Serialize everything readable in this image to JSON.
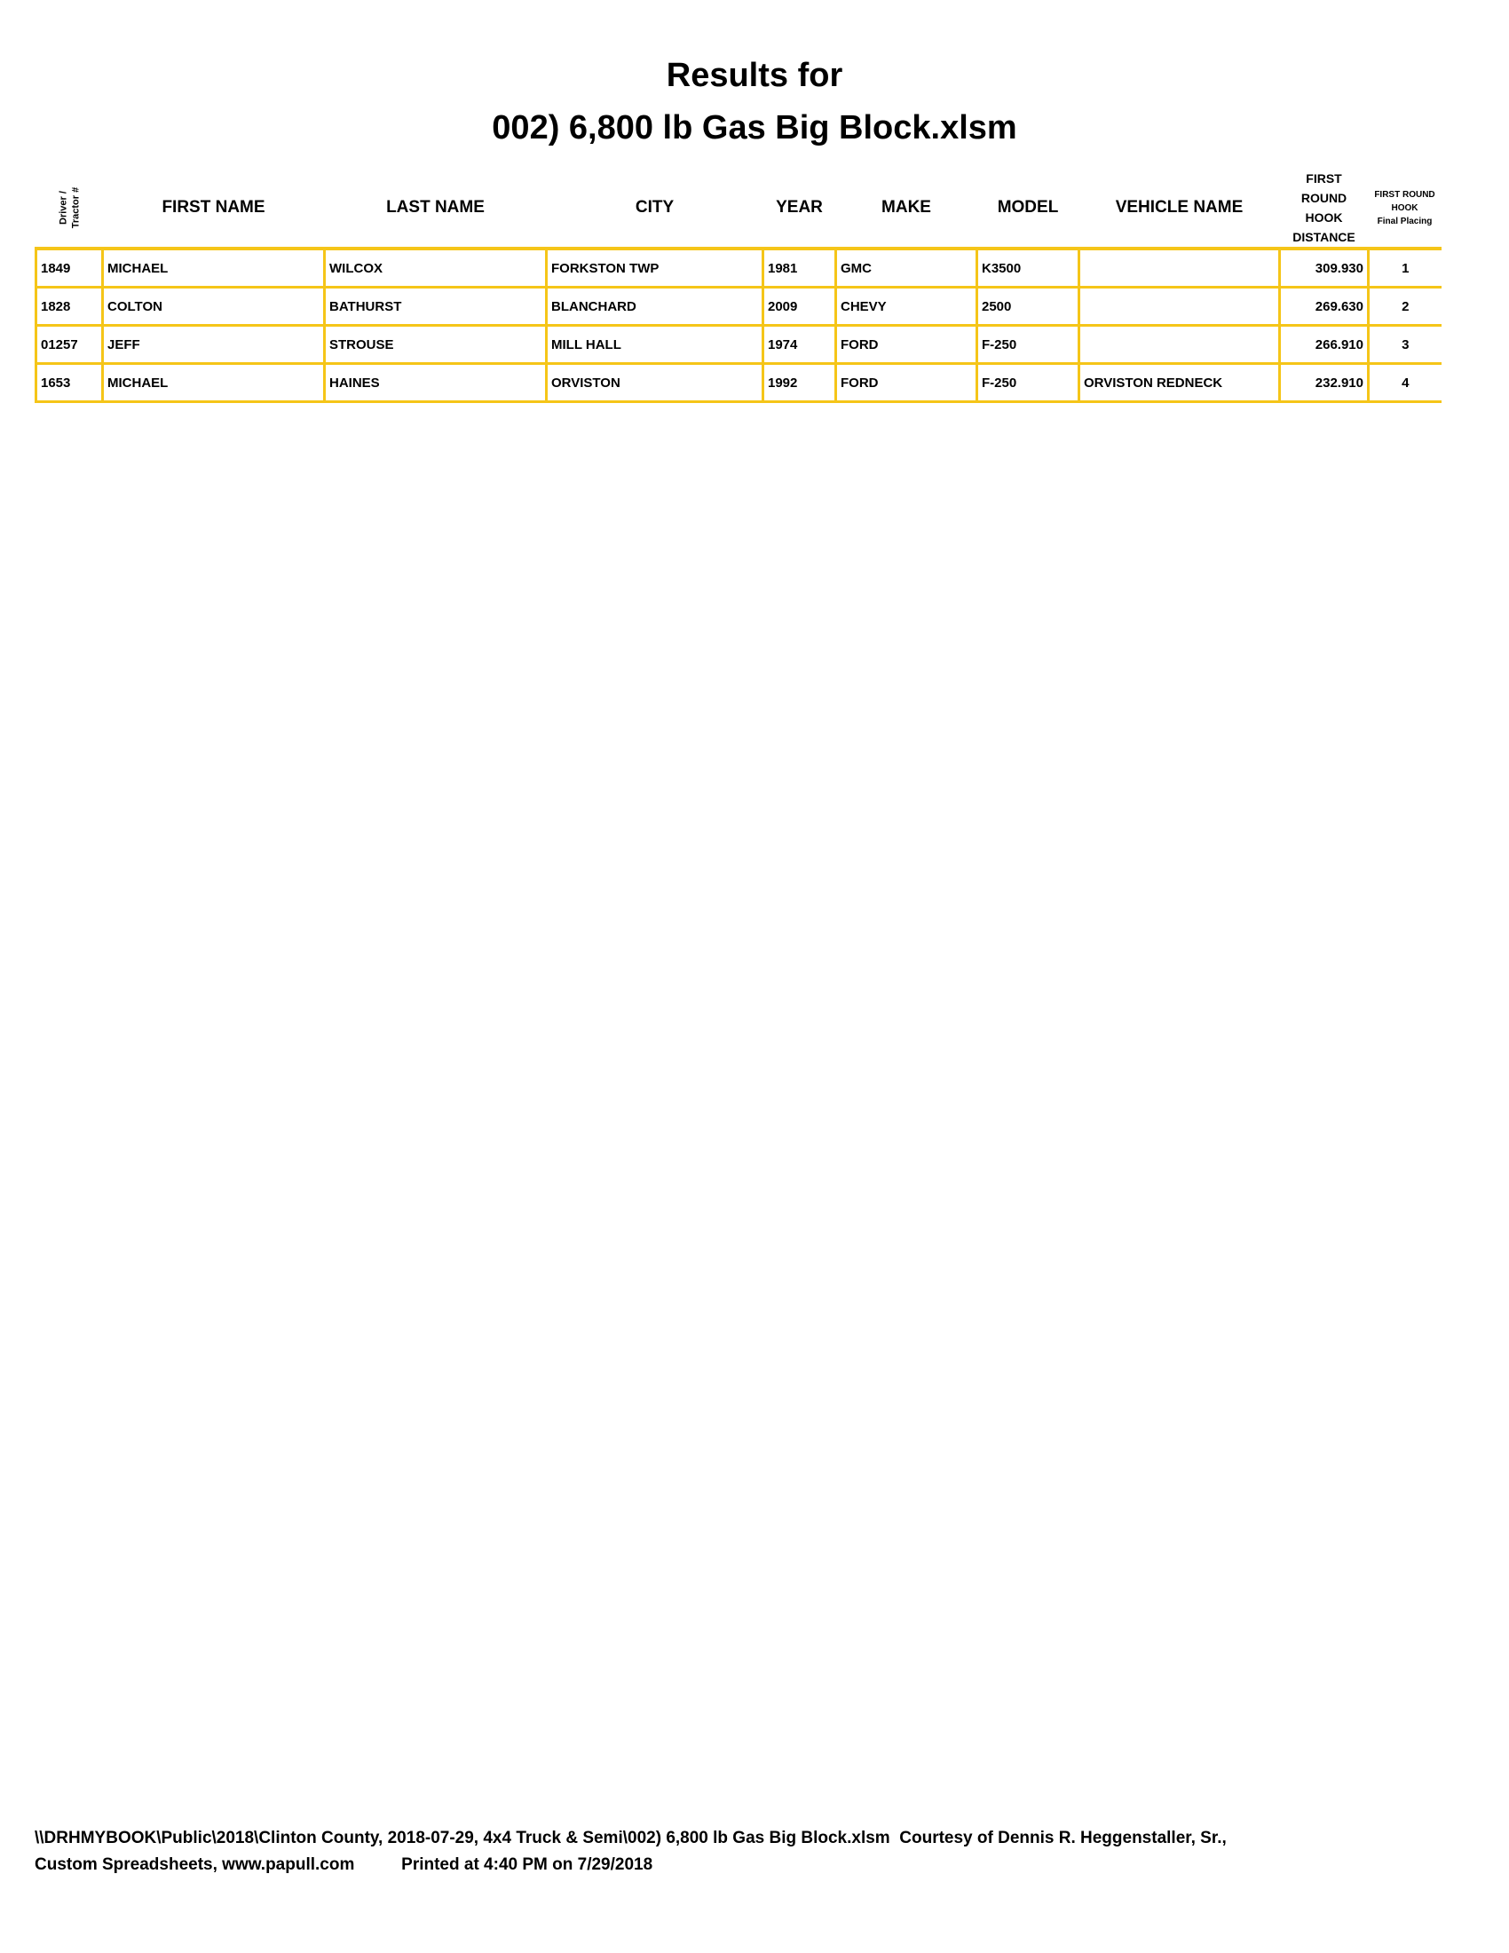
{
  "title_line1": "Results for",
  "title_line2": "002) 6,800 lb Gas Big Block.xlsm",
  "headers": {
    "driver_line1": "Driver /",
    "driver_line2": "Tractor #",
    "first_name": "FIRST NAME",
    "last_name": "LAST NAME",
    "city": "CITY",
    "year": "YEAR",
    "make": "MAKE",
    "model": "MODEL",
    "vehicle_name": "VEHICLE NAME",
    "distance_line1": "FIRST",
    "distance_line2": "ROUND",
    "distance_line3": "HOOK",
    "distance_line4": "DISTANCE",
    "placing_line1": "FIRST ROUND",
    "placing_line2": "HOOK",
    "placing_line3": "Final Placing"
  },
  "rows": [
    {
      "num": "1849",
      "first": "MICHAEL",
      "last": "WILCOX",
      "city": "FORKSTON TWP",
      "year": "1981",
      "make": "GMC",
      "model": "K3500",
      "vehicle": "",
      "distance": "309.930",
      "place": "1"
    },
    {
      "num": "1828",
      "first": "COLTON",
      "last": "BATHURST",
      "city": "BLANCHARD",
      "year": "2009",
      "make": "CHEVY",
      "model": "2500",
      "vehicle": "",
      "distance": "269.630",
      "place": "2"
    },
    {
      "num": "01257",
      "first": "JEFF",
      "last": "STROUSE",
      "city": "MILL HALL",
      "year": "1974",
      "make": "FORD",
      "model": "F-250",
      "vehicle": "",
      "distance": "266.910",
      "place": "3"
    },
    {
      "num": "1653",
      "first": "MICHAEL",
      "last": "HAINES",
      "city": "ORVISTON",
      "year": "1992",
      "make": "FORD",
      "model": "F-250",
      "vehicle": "ORVISTON REDNECK",
      "distance": "232.910",
      "place": "4"
    }
  ],
  "footer_line1": "\\\\DRHMYBOOK\\Public\\2018\\Clinton County, 2018-07-29, 4x4 Truck & Semi\\002) 6,800 lb Gas Big Block.xlsm  Courtesy of Dennis R. Heggenstaller, Sr.,",
  "footer_line2": "Custom Spreadsheets, www.papull.com          Printed at 4:40 PM on 7/29/2018",
  "colors": {
    "grid": "#f5c518"
  }
}
